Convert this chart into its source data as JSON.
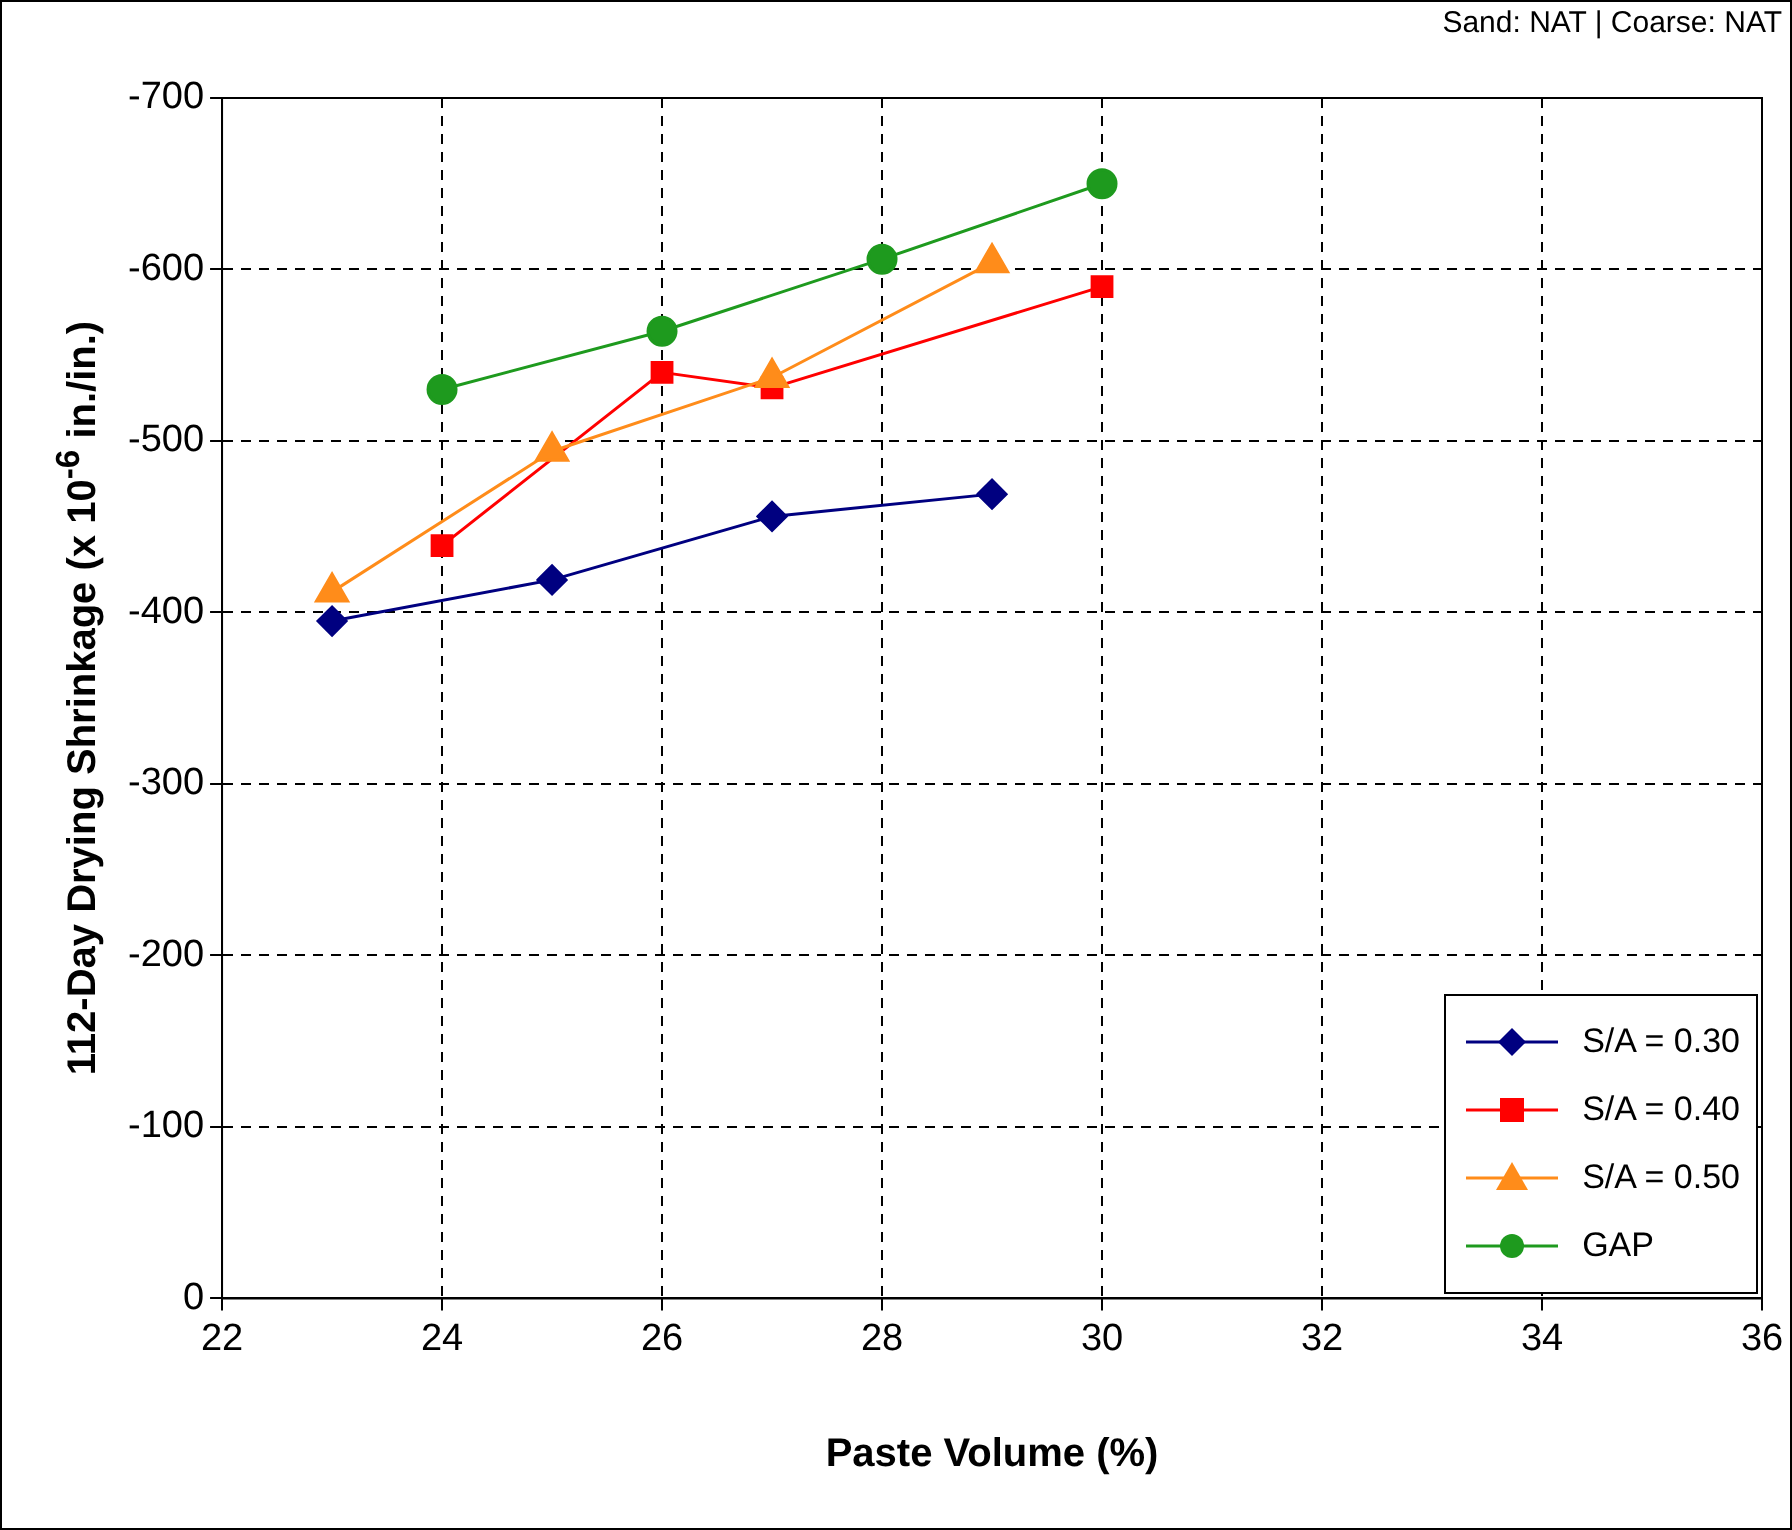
{
  "chart_data": {
    "type": "line",
    "xlabel": "Paste Volume (%)",
    "ylabel": "112-Day Drying Shrinkage (x 10$^{-6}$ in./in.)",
    "annotations": [
      "Sand: NAT | Coarse: NAT"
    ],
    "xlim": [
      22,
      36
    ],
    "xticks": [
      22,
      24,
      26,
      28,
      30,
      32,
      34,
      36
    ],
    "ylim": [
      0,
      -700
    ],
    "yticks": [
      0,
      -100,
      -200,
      -300,
      -400,
      -500,
      -600,
      -700
    ],
    "grid": true,
    "line_style": "solid",
    "legend": "bottom right",
    "series": [
      {
        "name": "S/A = 0.30",
        "color": "#000080",
        "marker": "diamond",
        "x": [
          23,
          25,
          27,
          29
        ],
        "values": [
          -395,
          -419,
          -456,
          -469
        ]
      },
      {
        "name": "S/A = 0.40",
        "color": "#ff0000",
        "marker": "square",
        "x": [
          24,
          26,
          27,
          30
        ],
        "values": [
          -439,
          -540,
          -531,
          -590
        ]
      },
      {
        "name": "S/A = 0.50",
        "color": "#ff8c1a",
        "marker": "triangle",
        "x": [
          23,
          25,
          27,
          29
        ],
        "values": [
          -412,
          -494,
          -537,
          -604
        ]
      },
      {
        "name": "GAP",
        "color": "#1e9a1e",
        "marker": "circle",
        "x": [
          24,
          26,
          28,
          30
        ],
        "values": [
          -530,
          -564,
          -606,
          -650
        ]
      }
    ]
  }
}
